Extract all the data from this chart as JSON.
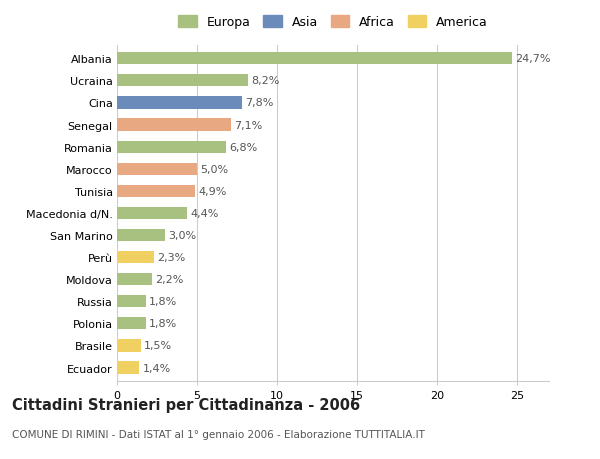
{
  "categories": [
    "Albania",
    "Ucraina",
    "Cina",
    "Senegal",
    "Romania",
    "Marocco",
    "Tunisia",
    "Macedonia d/N.",
    "San Marino",
    "Perù",
    "Moldova",
    "Russia",
    "Polonia",
    "Brasile",
    "Ecuador"
  ],
  "values": [
    24.7,
    8.2,
    7.8,
    7.1,
    6.8,
    5.0,
    4.9,
    4.4,
    3.0,
    2.3,
    2.2,
    1.8,
    1.8,
    1.5,
    1.4
  ],
  "labels": [
    "24,7%",
    "8,2%",
    "7,8%",
    "7,1%",
    "6,8%",
    "5,0%",
    "4,9%",
    "4,4%",
    "3,0%",
    "2,3%",
    "2,2%",
    "1,8%",
    "1,8%",
    "1,5%",
    "1,4%"
  ],
  "continents": [
    "Europa",
    "Europa",
    "Asia",
    "Africa",
    "Europa",
    "Africa",
    "Africa",
    "Europa",
    "Europa",
    "America",
    "Europa",
    "Europa",
    "Europa",
    "America",
    "America"
  ],
  "continent_colors": {
    "Europa": "#a8c080",
    "Asia": "#6b8cba",
    "Africa": "#e8a882",
    "America": "#f0d060"
  },
  "legend_labels": [
    "Europa",
    "Asia",
    "Africa",
    "America"
  ],
  "legend_colors": [
    "#a8c080",
    "#6b8cba",
    "#e8a882",
    "#f0d060"
  ],
  "title": "Cittadini Stranieri per Cittadinanza - 2006",
  "subtitle": "COMUNE DI RIMINI - Dati ISTAT al 1° gennaio 2006 - Elaborazione TUTTITALIA.IT",
  "xlim": [
    0,
    27
  ],
  "xticks": [
    0,
    5,
    10,
    15,
    20,
    25
  ],
  "bg_color": "#ffffff",
  "grid_color": "#cccccc",
  "bar_height": 0.55,
  "label_fontsize": 8,
  "tick_fontsize": 8,
  "title_fontsize": 10.5,
  "subtitle_fontsize": 7.5
}
